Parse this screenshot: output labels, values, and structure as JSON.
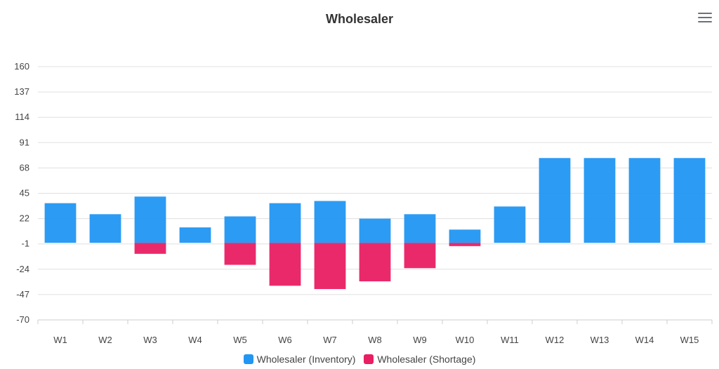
{
  "chart_data": {
    "type": "bar",
    "title": "Wholesaler",
    "categories": [
      "W1",
      "W2",
      "W3",
      "W4",
      "W5",
      "W6",
      "W7",
      "W8",
      "W9",
      "W10",
      "W11",
      "W12",
      "W13",
      "W14",
      "W15"
    ],
    "y_ticks": [
      160,
      137,
      114,
      91,
      68,
      45,
      22,
      -1,
      -24,
      -47,
      -70
    ],
    "ylim": [
      -70,
      160
    ],
    "grid": true,
    "legend_position": "bottom-center",
    "series": [
      {
        "name": "Wholesaler (Inventory)",
        "color": "#2196f3",
        "values": [
          36,
          26,
          42,
          14,
          24,
          36,
          38,
          22,
          26,
          12,
          33,
          77,
          77,
          77,
          77
        ]
      },
      {
        "name": "Wholesaler (Shortage)",
        "color": "#e91e63",
        "values": [
          0,
          0,
          -10,
          0,
          -20,
          -39,
          -42,
          -35,
          -23,
          -3,
          0,
          0,
          0,
          0,
          0
        ]
      }
    ]
  },
  "menu": {
    "icon": "hamburger-menu-icon"
  }
}
